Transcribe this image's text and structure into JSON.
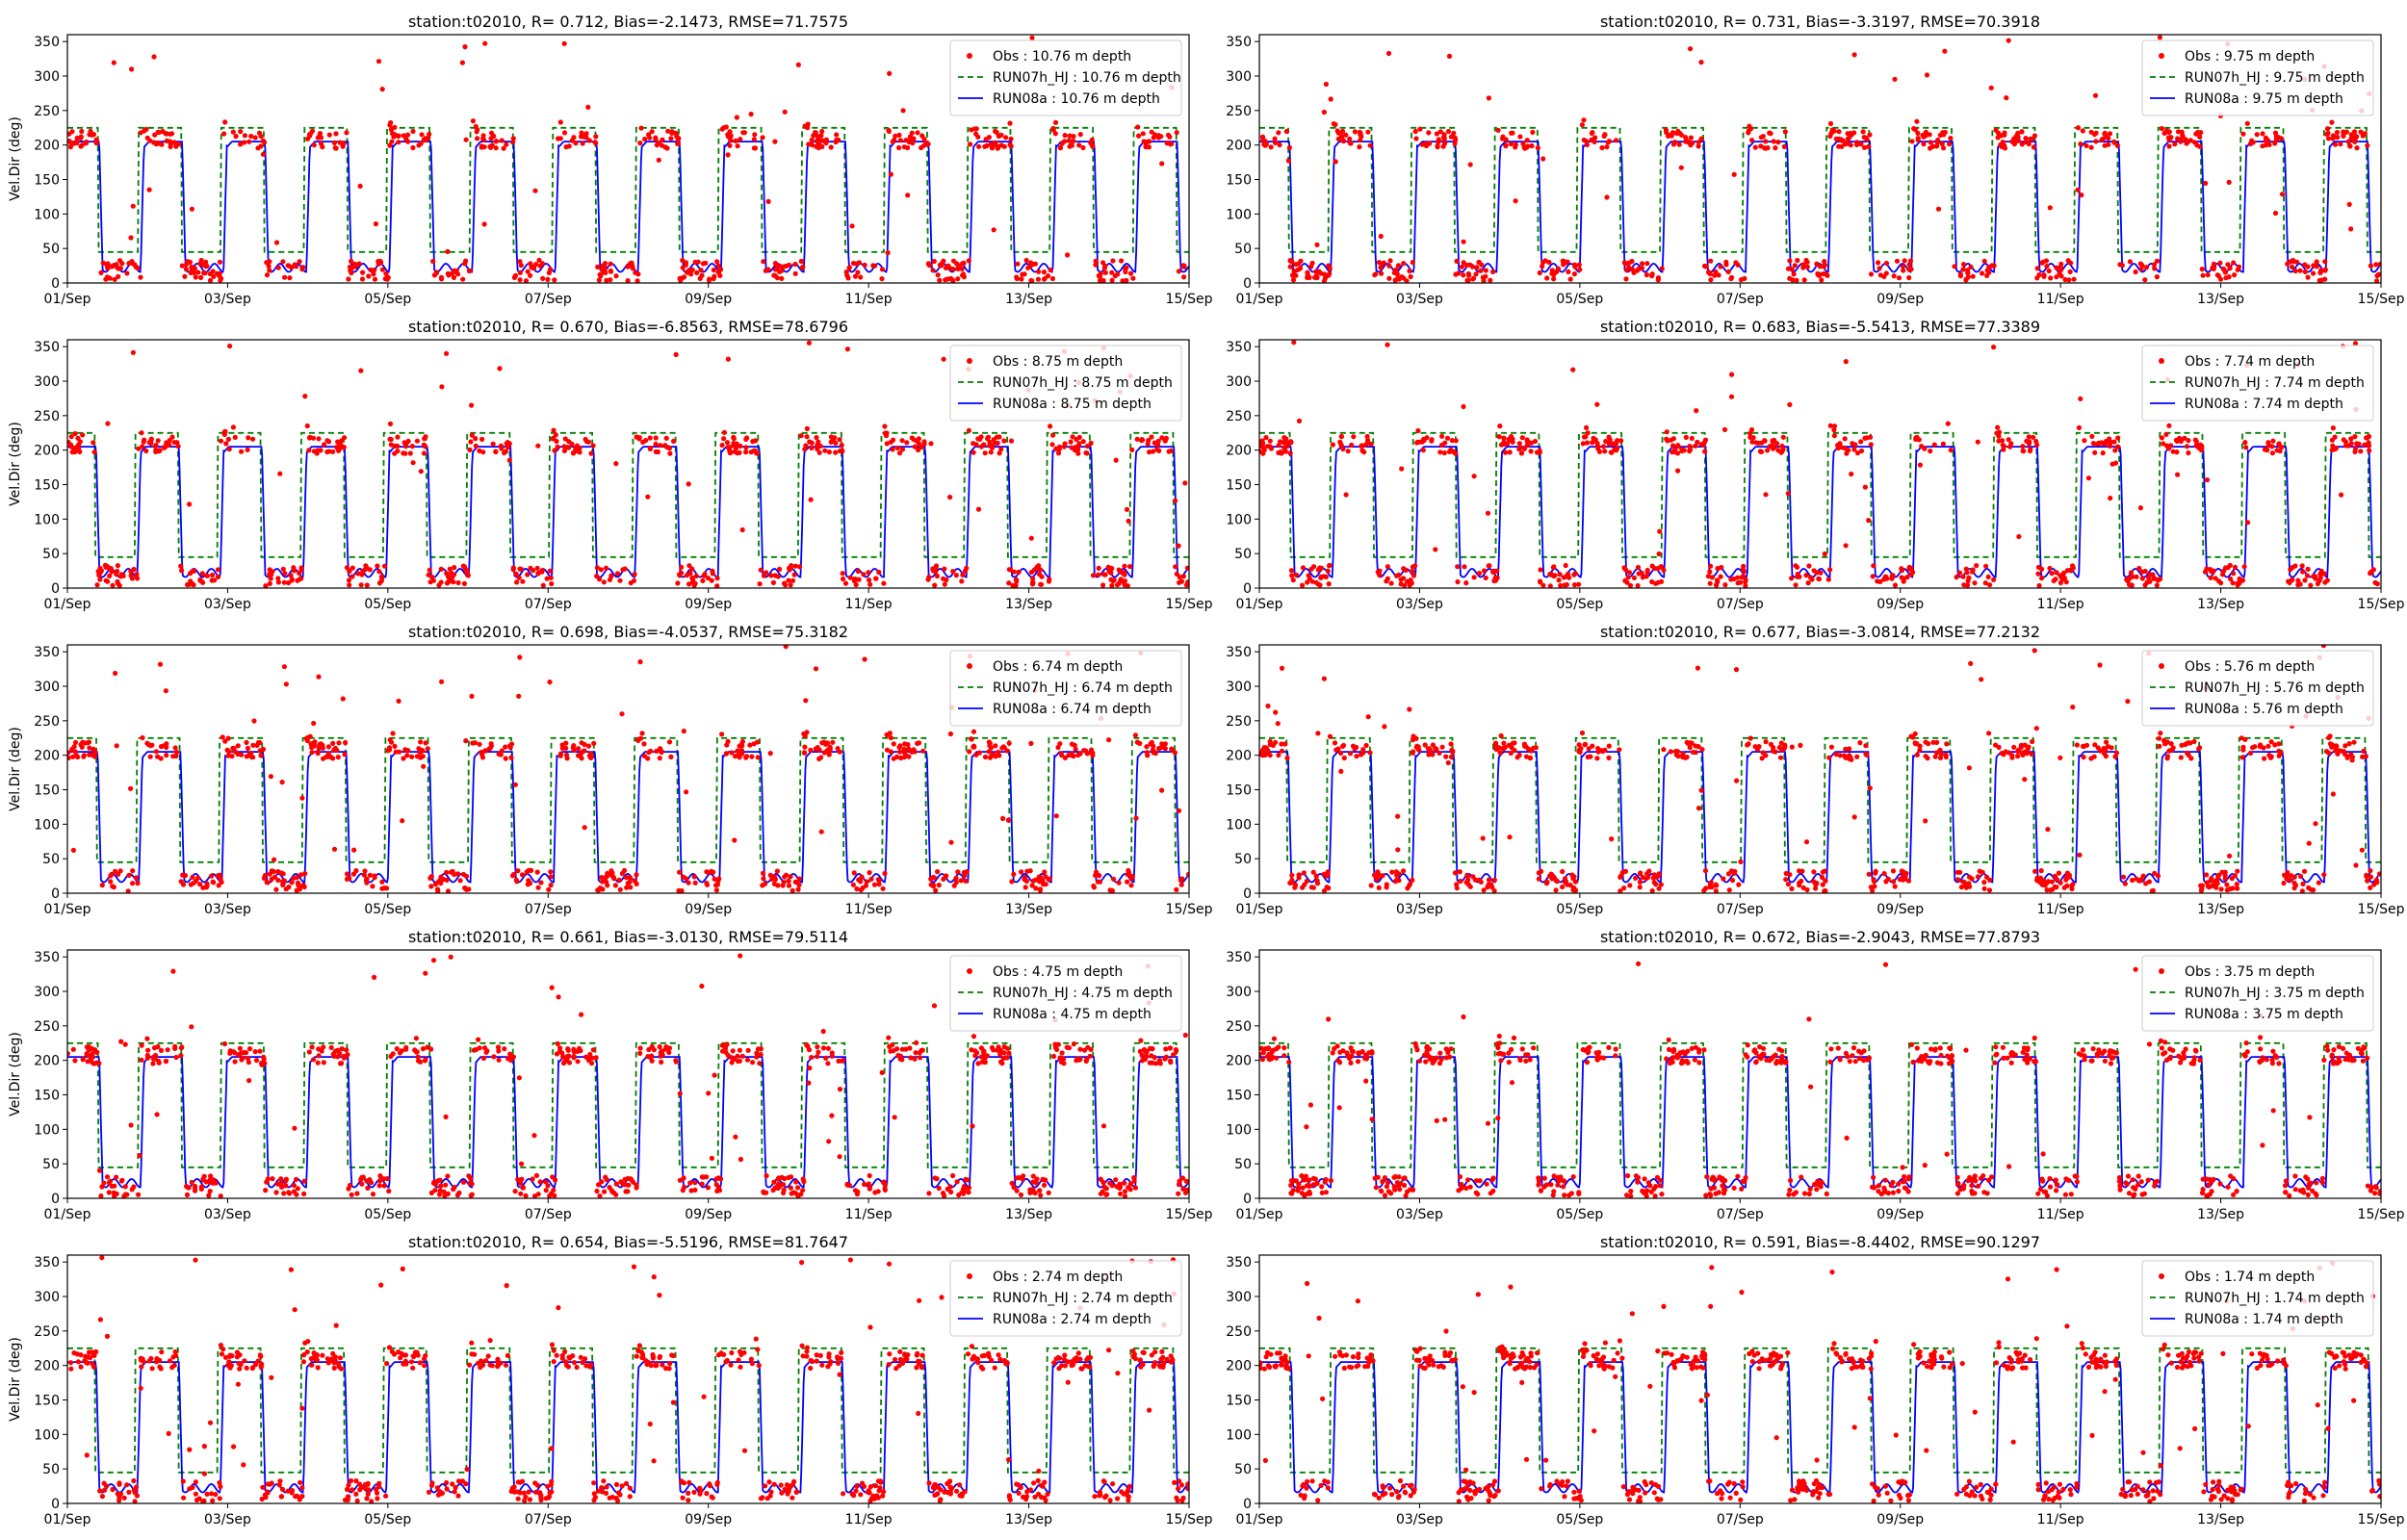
{
  "figure": {
    "station_label": "station:t02010",
    "ylabel": "Vel.Dir (deg)",
    "yticks": [
      0,
      50,
      100,
      150,
      200,
      250,
      300,
      350
    ],
    "xticks": [
      "01/Sep",
      "03/Sep",
      "05/Sep",
      "07/Sep",
      "09/Sep",
      "11/Sep",
      "13/Sep",
      "15/Sep"
    ],
    "colors": {
      "obs": "#ff0000",
      "run07": "#008000",
      "run08": "#0000ff"
    }
  },
  "chart_data": [
    {
      "type": "line",
      "title": "station:t02010, R= 0.712, Bias=-2.1473, RMSE=71.7575",
      "ylabel": "Vel.Dir (deg)",
      "xlim": [
        "01/Sep",
        "15/Sep"
      ],
      "ylim": [
        0,
        360
      ],
      "legend": [
        "Obs : 10.76 m depth",
        "RUN07h_HJ : 10.76 m depth",
        "RUN08a : 10.76 m depth"
      ],
      "legend_loc": "upper right",
      "series": [
        {
          "name": "Obs : 10.76 m depth",
          "style": "dots",
          "description": "tidal alternation ~205 / ~20 deg with scattered outliers up to 360"
        },
        {
          "name": "RUN07h_HJ : 10.76 m depth",
          "style": "dashed",
          "flood_level": 225,
          "ebb_level": 45
        },
        {
          "name": "RUN08a : 10.76 m depth",
          "style": "solid",
          "flood_level": 205,
          "ebb_level": 22
        }
      ]
    },
    {
      "type": "line",
      "title": "station:t02010, R= 0.731, Bias=-3.3197, RMSE=70.3918",
      "ylabel": "",
      "xlim": [
        "01/Sep",
        "15/Sep"
      ],
      "ylim": [
        0,
        360
      ],
      "legend": [
        "Obs : 9.75 m depth",
        "RUN07h_HJ : 9.75 m depth",
        "RUN08a : 9.75 m depth"
      ],
      "legend_loc": "upper right",
      "series": [
        {
          "name": "Obs : 9.75 m depth",
          "style": "dots"
        },
        {
          "name": "RUN07h_HJ : 9.75 m depth",
          "style": "dashed",
          "flood_level": 225,
          "ebb_level": 45
        },
        {
          "name": "RUN08a : 9.75 m depth",
          "style": "solid",
          "flood_level": 205,
          "ebb_level": 22
        }
      ]
    },
    {
      "type": "line",
      "title": "station:t02010, R= 0.670, Bias=-6.8563, RMSE=78.6796",
      "ylabel": "Vel.Dir (deg)",
      "xlim": [
        "01/Sep",
        "15/Sep"
      ],
      "ylim": [
        0,
        360
      ],
      "legend": [
        "Obs : 8.75 m depth",
        "RUN07h_HJ : 8.75 m depth",
        "RUN08a : 8.75 m depth"
      ],
      "legend_loc": "upper right",
      "series": [
        {
          "name": "Obs : 8.75 m depth",
          "style": "dots"
        },
        {
          "name": "RUN07h_HJ : 8.75 m depth",
          "style": "dashed",
          "flood_level": 225,
          "ebb_level": 45
        },
        {
          "name": "RUN08a : 8.75 m depth",
          "style": "solid",
          "flood_level": 205,
          "ebb_level": 22
        }
      ]
    },
    {
      "type": "line",
      "title": "station:t02010, R= 0.683, Bias=-5.5413, RMSE=77.3389",
      "ylabel": "",
      "xlim": [
        "01/Sep",
        "15/Sep"
      ],
      "ylim": [
        0,
        360
      ],
      "legend": [
        "Obs : 7.74 m depth",
        "RUN07h_HJ : 7.74 m depth",
        "RUN08a : 7.74 m depth"
      ],
      "legend_loc": "upper right",
      "series": [
        {
          "name": "Obs : 7.74 m depth",
          "style": "dots"
        },
        {
          "name": "RUN07h_HJ : 7.74 m depth",
          "style": "dashed",
          "flood_level": 225,
          "ebb_level": 45
        },
        {
          "name": "RUN08a : 7.74 m depth",
          "style": "solid",
          "flood_level": 205,
          "ebb_level": 22
        }
      ]
    },
    {
      "type": "line",
      "title": "station:t02010, R= 0.698, Bias=-4.0537, RMSE=75.3182",
      "ylabel": "Vel.Dir (deg)",
      "xlim": [
        "01/Sep",
        "15/Sep"
      ],
      "ylim": [
        0,
        360
      ],
      "legend": [
        "Obs : 6.74 m depth",
        "RUN07h_HJ : 6.74 m depth",
        "RUN08a : 6.74 m depth"
      ],
      "legend_loc": "upper right",
      "series": [
        {
          "name": "Obs : 6.74 m depth",
          "style": "dots"
        },
        {
          "name": "RUN07h_HJ : 6.74 m depth",
          "style": "dashed",
          "flood_level": 225,
          "ebb_level": 45
        },
        {
          "name": "RUN08a : 6.74 m depth",
          "style": "solid",
          "flood_level": 205,
          "ebb_level": 22
        }
      ]
    },
    {
      "type": "line",
      "title": "station:t02010, R= 0.677, Bias=-3.0814, RMSE=77.2132",
      "ylabel": "",
      "xlim": [
        "01/Sep",
        "15/Sep"
      ],
      "ylim": [
        0,
        360
      ],
      "legend": [
        "Obs : 5.76 m depth",
        "RUN07h_HJ : 5.76 m depth",
        "RUN08a : 5.76 m depth"
      ],
      "legend_loc": "upper right",
      "series": [
        {
          "name": "Obs : 5.76 m depth",
          "style": "dots"
        },
        {
          "name": "RUN07h_HJ : 5.76 m depth",
          "style": "dashed",
          "flood_level": 225,
          "ebb_level": 45
        },
        {
          "name": "RUN08a : 5.76 m depth",
          "style": "solid",
          "flood_level": 205,
          "ebb_level": 22
        }
      ]
    },
    {
      "type": "line",
      "title": "station:t02010, R= 0.661, Bias=-3.0130, RMSE=79.5114",
      "ylabel": "Vel.Dir (deg)",
      "xlim": [
        "01/Sep",
        "15/Sep"
      ],
      "ylim": [
        0,
        360
      ],
      "legend": [
        "Obs : 4.75 m depth",
        "RUN07h_HJ : 4.75 m depth",
        "RUN08a : 4.75 m depth"
      ],
      "legend_loc": "upper right",
      "series": [
        {
          "name": "Obs : 4.75 m depth",
          "style": "dots"
        },
        {
          "name": "RUN07h_HJ : 4.75 m depth",
          "style": "dashed",
          "flood_level": 225,
          "ebb_level": 45
        },
        {
          "name": "RUN08a : 4.75 m depth",
          "style": "solid",
          "flood_level": 205,
          "ebb_level": 22
        }
      ]
    },
    {
      "type": "line",
      "title": "station:t02010, R= 0.672, Bias=-2.9043, RMSE=77.8793",
      "ylabel": "",
      "xlim": [
        "01/Sep",
        "15/Sep"
      ],
      "ylim": [
        0,
        360
      ],
      "legend": [
        "Obs : 3.75 m depth",
        "RUN07h_HJ : 3.75 m depth",
        "RUN08a : 3.75 m depth"
      ],
      "legend_loc": "upper right",
      "series": [
        {
          "name": "Obs : 3.75 m depth",
          "style": "dots"
        },
        {
          "name": "RUN07h_HJ : 3.75 m depth",
          "style": "dashed",
          "flood_level": 225,
          "ebb_level": 45
        },
        {
          "name": "RUN08a : 3.75 m depth",
          "style": "solid",
          "flood_level": 205,
          "ebb_level": 22
        }
      ]
    },
    {
      "type": "line",
      "title": "station:t02010, R= 0.654, Bias=-5.5196, RMSE=81.7647",
      "ylabel": "Vel.Dir (deg)",
      "xlim": [
        "01/Sep",
        "15/Sep"
      ],
      "ylim": [
        0,
        360
      ],
      "legend": [
        "Obs : 2.74 m depth",
        "RUN07h_HJ : 2.74 m depth",
        "RUN08a : 2.74 m depth"
      ],
      "legend_loc": "upper right",
      "series": [
        {
          "name": "Obs : 2.74 m depth",
          "style": "dots"
        },
        {
          "name": "RUN07h_HJ : 2.74 m depth",
          "style": "dashed",
          "flood_level": 225,
          "ebb_level": 45
        },
        {
          "name": "RUN08a : 2.74 m depth",
          "style": "solid",
          "flood_level": 205,
          "ebb_level": 22
        }
      ]
    },
    {
      "type": "line",
      "title": "station:t02010, R= 0.591, Bias=-8.4402, RMSE=90.1297",
      "ylabel": "",
      "xlim": [
        "01/Sep",
        "15/Sep"
      ],
      "ylim": [
        0,
        360
      ],
      "legend": [
        "Obs : 1.74 m depth",
        "RUN07h_HJ : 1.74 m depth",
        "RUN08a : 1.74 m depth"
      ],
      "legend_loc": "upper right",
      "series": [
        {
          "name": "Obs : 1.74 m depth",
          "style": "dots"
        },
        {
          "name": "RUN07h_HJ : 1.74 m depth",
          "style": "dashed",
          "flood_level": 225,
          "ebb_level": 45
        },
        {
          "name": "RUN08a : 1.74 m depth",
          "style": "solid",
          "flood_level": 205,
          "ebb_level": 22
        }
      ]
    }
  ]
}
